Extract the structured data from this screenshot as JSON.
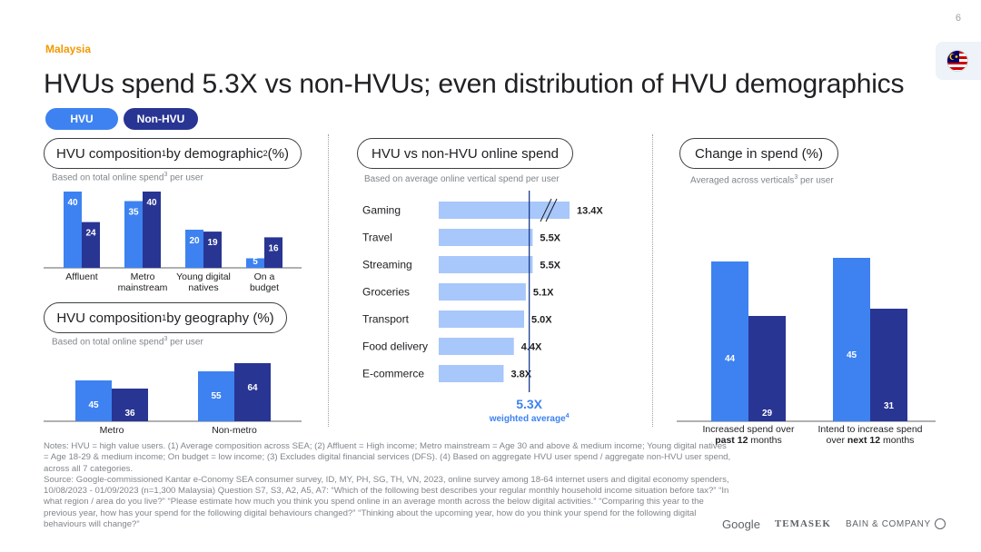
{
  "page_number": "6",
  "country": "Malaysia",
  "title": "HVUs spend 5.3X vs non-HVUs; even distribution of HVU demographics",
  "legend": {
    "hvu": "HVU",
    "non_hvu": "Non-HVU",
    "colors": {
      "hvu": "#3d82f0",
      "non_hvu": "#283593",
      "online_spend": "#a8c7fa",
      "accent": "#3d82f0"
    }
  },
  "sections": {
    "demographic": {
      "label": "HVU composition",
      "sup1": "1",
      "label_mid": " by demographic",
      "sup2": "2",
      "label_end": " (%)",
      "note": "Based on total online spend",
      "note_sup": "3",
      "note_end": " per user"
    },
    "geography": {
      "label": "HVU composition",
      "sup1": "1",
      "label_end": " by geography (%)",
      "note": "Based on total online spend",
      "note_sup": "3",
      "note_end": " per user"
    },
    "online_spend": {
      "label": "HVU vs non-HVU online spend",
      "note": "Based on average online vertical spend per user"
    },
    "change": {
      "label": "Change in spend (%)",
      "note": "Averaged across verticals",
      "note_sup": "3",
      "note_end": " per user"
    }
  },
  "chart_data": [
    {
      "type": "bar",
      "categories": [
        "Affluent",
        "Metro mainstream",
        "Young digital natives",
        "On a budget"
      ],
      "series": [
        {
          "name": "HVU",
          "values": [
            40,
            35,
            20,
            5
          ]
        },
        {
          "name": "Non-HVU",
          "values": [
            24,
            40,
            19,
            16
          ]
        }
      ]
    },
    {
      "type": "bar",
      "categories": [
        "Metro",
        "Non-metro"
      ],
      "series": [
        {
          "name": "HVU",
          "values": [
            45,
            55
          ]
        },
        {
          "name": "Non-HVU",
          "values": [
            36,
            64
          ]
        }
      ]
    },
    {
      "type": "bar",
      "orientation": "horizontal",
      "categories": [
        "Gaming",
        "Travel",
        "Streaming",
        "Groceries",
        "Transport",
        "Food delivery",
        "E-commerce"
      ],
      "values": [
        13.4,
        5.5,
        5.5,
        5.1,
        5.0,
        4.4,
        3.8
      ],
      "value_labels": [
        "13.4X",
        "5.5X",
        "5.5X",
        "5.1X",
        "5.0X",
        "4.4X",
        "3.8X"
      ],
      "axis_break_on": "Gaming",
      "reference_line": {
        "value": 5.3,
        "label": "5.3X",
        "sublabel": "weighted average",
        "sublabel_sup": "4"
      }
    },
    {
      "type": "bar",
      "categories": [
        "Increased spend over past 12 months",
        "Intend to increase spend over next 12 months"
      ],
      "category_lines": [
        {
          "pre": "Increased spend over",
          "pre2": "",
          "bold": "past 12",
          "post": " months"
        },
        {
          "pre": "Intend to increase spend",
          "pre2": "over ",
          "bold": "next 12",
          "post": " months"
        }
      ],
      "series": [
        {
          "name": "HVU",
          "values": [
            44,
            45
          ]
        },
        {
          "name": "Non-HVU",
          "values": [
            29,
            31
          ]
        }
      ]
    }
  ],
  "notes": "Notes: HVU = high value users. (1) Average composition across SEA; (2) Affluent = High income; Metro mainstream = Age 30 and above & medium income; Young digital natives = Age 18-29 & medium income; On budget = low income; (3) Excludes digital financial services (DFS). (4) Based on aggregate HVU user spend / aggregate non-HVU user spend, across all 7 categories.",
  "source": "Source: Google-commissioned Kantar e-Conomy SEA consumer survey, ID, MY, PH, SG, TH, VN, 2023, online survey among 18-64 internet users and digital economy spenders, 10/08/2023 - 01/09/2023 (n=1,300 Malaysia) Question S7, S3, A2, A5, A7: “Which of the following best describes your regular monthly household income situation before tax?” “In what region / area do you live?” “Please estimate how much you think you spend online in an average month across the below digital activities.” “Comparing this year to the previous year, how has your spend for the following digital behaviours changed?” “Thinking about the upcoming year, how do you think your spend for the following digital behaviours will change?”",
  "logos": {
    "google": "Google",
    "temasek": "TEMASEK",
    "bain": "BAIN & COMPANY"
  }
}
